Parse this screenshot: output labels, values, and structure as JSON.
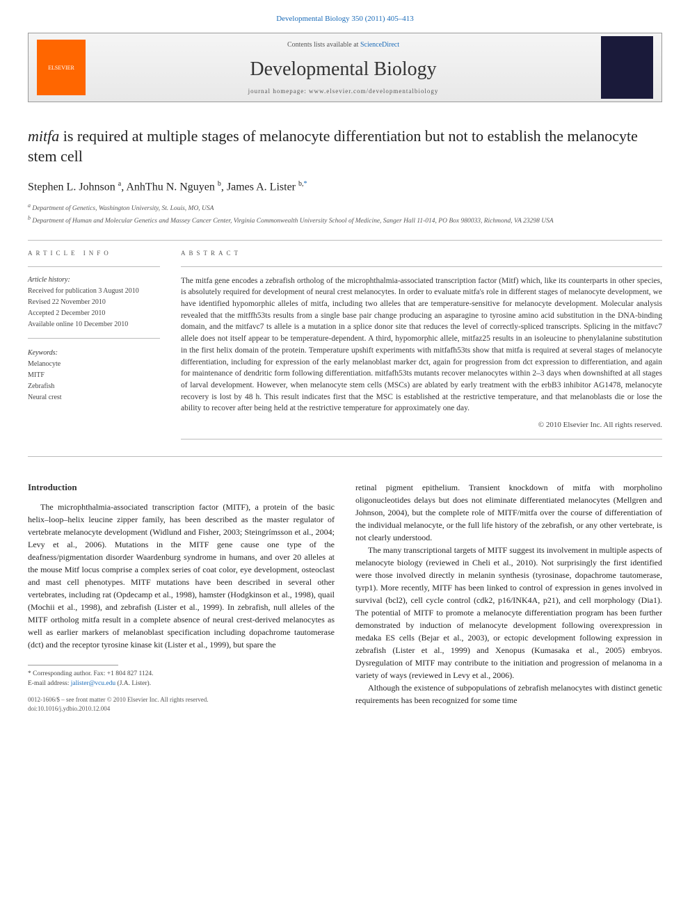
{
  "header": {
    "citation_link": "Developmental Biology 350 (2011) 405–413",
    "contents_line_prefix": "Contents lists available at ",
    "contents_line_link": "ScienceDirect",
    "journal_name": "Developmental Biology",
    "homepage_prefix": "journal homepage: ",
    "homepage_url": "www.elsevier.com/developmentalbiology",
    "publisher_logo_text": "ELSEVIER"
  },
  "article": {
    "title_pre_italic": "mitfa",
    "title_rest": " is required at multiple stages of melanocyte differentiation but not to establish the melanocyte stem cell",
    "authors": [
      {
        "name": "Stephen L. Johnson",
        "sup": "a"
      },
      {
        "name": "AnhThu N. Nguyen",
        "sup": "b"
      },
      {
        "name": "James A. Lister",
        "sup": "b,",
        "star": true
      }
    ],
    "affiliations": [
      {
        "sup": "a",
        "text": "Department of Genetics, Washington University, St. Louis, MO, USA"
      },
      {
        "sup": "b",
        "text": "Department of Human and Molecular Genetics and Massey Cancer Center, Virginia Commonwealth University School of Medicine, Sanger Hall 11-014, PO Box 980033, Richmond, VA 23298 USA"
      }
    ]
  },
  "info": {
    "heading": "article info",
    "history_title": "Article history:",
    "history": [
      "Received for publication 3 August 2010",
      "Revised 22 November 2010",
      "Accepted 2 December 2010",
      "Available online 10 December 2010"
    ],
    "keywords_title": "Keywords:",
    "keywords": [
      "Melanocyte",
      "MITF",
      "Zebrafish",
      "Neural crest"
    ]
  },
  "abstract": {
    "heading": "abstract",
    "text": "The mitfa gene encodes a zebrafish ortholog of the microphthalmia-associated transcription factor (Mitf) which, like its counterparts in other species, is absolutely required for development of neural crest melanocytes. In order to evaluate mitfa's role in different stages of melanocyte development, we have identified hypomorphic alleles of mitfa, including two alleles that are temperature-sensitive for melanocyte development. Molecular analysis revealed that the mitffh53ts results from a single base pair change producing an asparagine to tyrosine amino acid substitution in the DNA-binding domain, and the mitfavc7 ts allele is a mutation in a splice donor site that reduces the level of correctly-spliced transcripts. Splicing in the mitfavc7 allele does not itself appear to be temperature-dependent. A third, hypomorphic allele, mitfaz25 results in an isoleucine to phenylalanine substitution in the first helix domain of the protein. Temperature upshift experiments with mitfafh53ts show that mitfa is required at several stages of melanocyte differentiation, including for expression of the early melanoblast marker dct, again for progression from dct expression to differentiation, and again for maintenance of dendritic form following differentiation. mitfafh53ts mutants recover melanocytes within 2–3 days when downshifted at all stages of larval development. However, when melanocyte stem cells (MSCs) are ablated by early treatment with the erbB3 inhibitor AG1478, melanocyte recovery is lost by 48 h. This result indicates first that the MSC is established at the restrictive temperature, and that melanoblasts die or lose the ability to recover after being held at the restrictive temperature for approximately one day.",
    "copyright": "© 2010 Elsevier Inc. All rights reserved."
  },
  "body": {
    "intro_heading": "Introduction",
    "col1_p1": "The microphthalmia-associated transcription factor (MITF), a protein of the basic helix–loop–helix leucine zipper family, has been described as the master regulator of vertebrate melanocyte development (Widlund and Fisher, 2003; Steingrímsson et al., 2004; Levy et al., 2006). Mutations in the MITF gene cause one type of the deafness/pigmentation disorder Waardenburg syndrome in humans, and over 20 alleles at the mouse Mitf locus comprise a complex series of coat color, eye development, osteoclast and mast cell phenotypes. MITF mutations have been described in several other vertebrates, including rat (Opdecamp et al., 1998), hamster (Hodgkinson et al., 1998), quail (Mochii et al., 1998), and zebrafish (Lister et al., 1999). In zebrafish, null alleles of the MITF ortholog mitfa result in a complete absence of neural crest-derived melanocytes as well as earlier markers of melanoblast specification including dopachrome tautomerase (dct) and the receptor tyrosine kinase kit (Lister et al., 1999), but spare the",
    "col2_p1": "retinal pigment epithelium. Transient knockdown of mitfa with morpholino oligonucleotides delays but does not eliminate differentiated melanocytes (Mellgren and Johnson, 2004), but the complete role of MITF/mitfa over the course of differentiation of the individual melanocyte, or the full life history of the zebrafish, or any other vertebrate, is not clearly understood.",
    "col2_p2": "The many transcriptional targets of MITF suggest its involvement in multiple aspects of melanocyte biology (reviewed in Cheli et al., 2010). Not surprisingly the first identified were those involved directly in melanin synthesis (tyrosinase, dopachrome tautomerase, tyrp1). More recently, MITF has been linked to control of expression in genes involved in survival (bcl2), cell cycle control (cdk2, p16/INK4A, p21), and cell morphology (Dia1). The potential of MITF to promote a melanocyte differentiation program has been further demonstrated by induction of melanocyte development following overexpression in medaka ES cells (Bejar et al., 2003), or ectopic development following expression in zebrafish (Lister et al., 1999) and Xenopus (Kumasaka et al., 2005) embryos. Dysregulation of MITF may contribute to the initiation and progression of melanoma in a variety of ways (reviewed in Levy et al., 2006).",
    "col2_p3": "Although the existence of subpopulations of zebrafish melanocytes with distinct genetic requirements has been recognized for some time"
  },
  "footer": {
    "corresponding": "* Corresponding author. Fax: +1 804 827 1124.",
    "email_label": "E-mail address: ",
    "email": "jalister@vcu.edu",
    "email_suffix": " (J.A. Lister).",
    "issn_line": "0012-1606/$ – see front matter © 2010 Elsevier Inc. All rights reserved.",
    "doi": "doi:10.1016/j.ydbio.2010.12.004"
  },
  "colors": {
    "link": "#1a6bb8",
    "text": "#333333",
    "elsevier_orange": "#ff6600"
  }
}
